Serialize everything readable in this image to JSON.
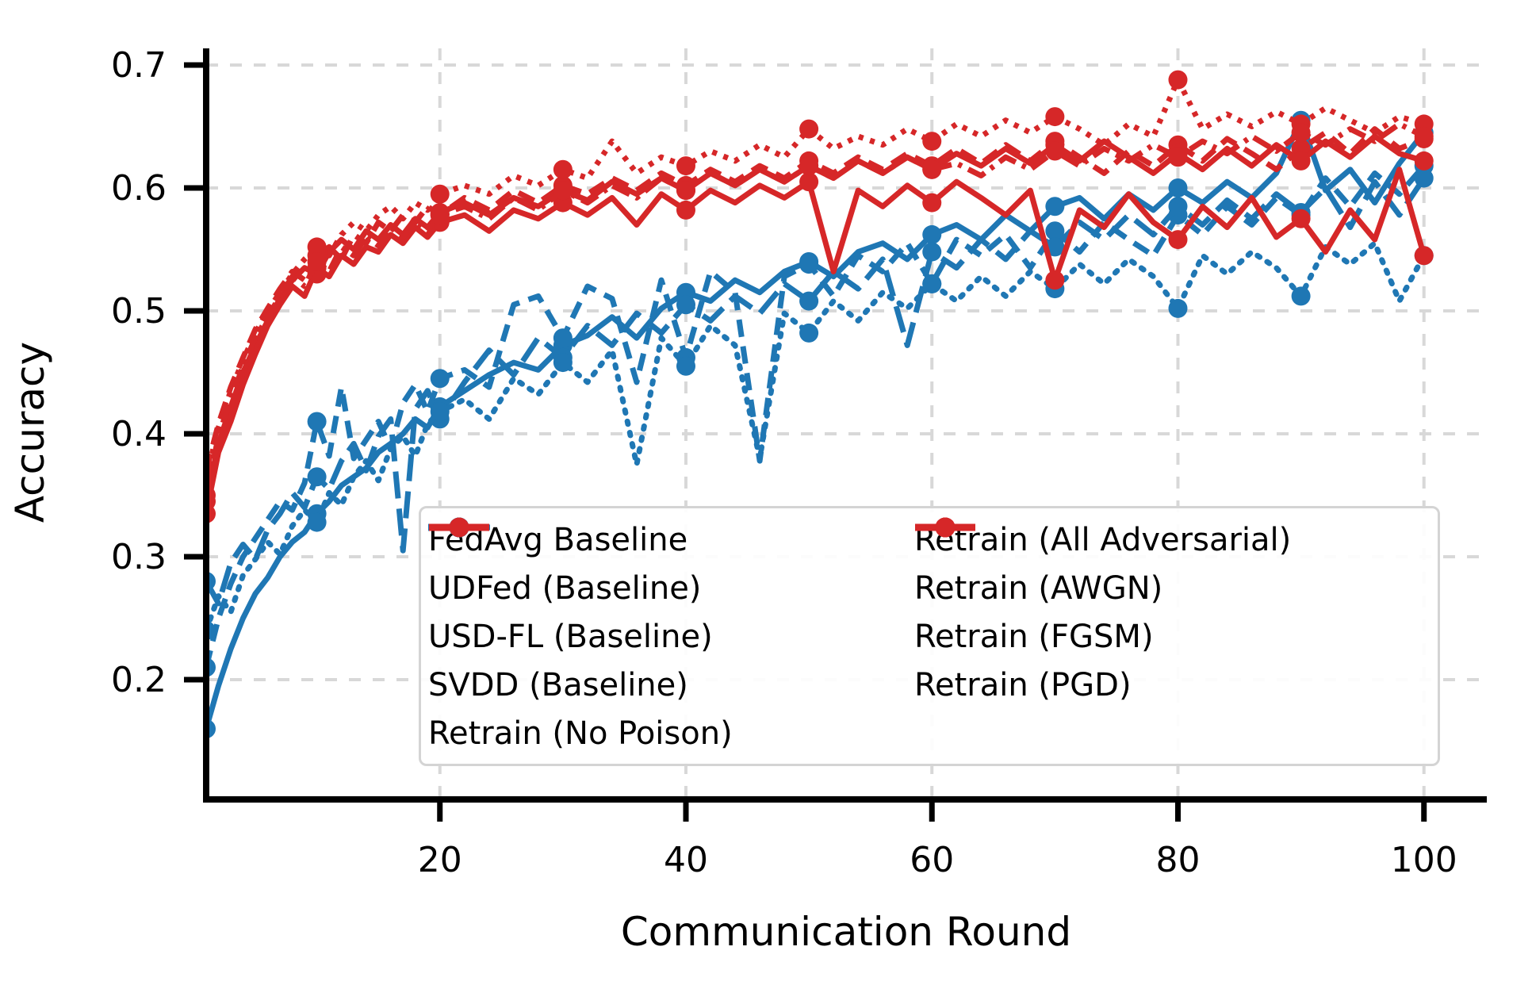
{
  "chart_data": {
    "type": "line",
    "title": "",
    "xlabel": "Communication Round",
    "ylabel": "Accuracy",
    "xlim": [
      1,
      105
    ],
    "ylim": [
      0.103,
      0.713
    ],
    "xticks": [
      20,
      40,
      60,
      80,
      100
    ],
    "yticks": [
      0.2,
      0.3,
      0.4,
      0.5,
      0.6,
      0.7
    ],
    "grid": true,
    "grid_style": "dashed",
    "legend_position": "lower center inside plot, 2 columns",
    "marker": "circle",
    "marker_every": 10,
    "x": [
      1,
      2,
      3,
      4,
      5,
      6,
      7,
      8,
      9,
      10,
      11,
      12,
      13,
      14,
      15,
      16,
      17,
      18,
      19,
      20,
      22,
      24,
      26,
      28,
      30,
      32,
      34,
      36,
      38,
      40,
      42,
      44,
      46,
      48,
      50,
      52,
      54,
      56,
      58,
      60,
      62,
      64,
      66,
      68,
      70,
      72,
      74,
      76,
      78,
      80,
      82,
      84,
      86,
      88,
      90,
      92,
      94,
      96,
      98,
      100
    ],
    "series": [
      {
        "name": "FedAvg Baseline",
        "color": "#1f77b4",
        "line_style": "solid",
        "values": [
          0.16,
          0.195,
          0.225,
          0.25,
          0.27,
          0.283,
          0.3,
          0.312,
          0.32,
          0.335,
          0.345,
          0.358,
          0.365,
          0.372,
          0.385,
          0.392,
          0.4,
          0.412,
          0.405,
          0.422,
          0.435,
          0.448,
          0.458,
          0.452,
          0.472,
          0.48,
          0.495,
          0.478,
          0.502,
          0.515,
          0.508,
          0.525,
          0.515,
          0.532,
          0.54,
          0.528,
          0.548,
          0.555,
          0.542,
          0.562,
          0.57,
          0.558,
          0.578,
          0.565,
          0.585,
          0.592,
          0.575,
          0.595,
          0.582,
          0.6,
          0.588,
          0.605,
          0.592,
          0.612,
          0.655,
          0.598,
          0.615,
          0.588,
          0.62,
          0.645
        ]
      },
      {
        "name": "UDFed (Baseline)",
        "color": "#1f77b4",
        "line_style": "dashed",
        "values": [
          0.21,
          0.25,
          0.278,
          0.3,
          0.315,
          0.33,
          0.345,
          0.338,
          0.36,
          0.41,
          0.382,
          0.438,
          0.38,
          0.395,
          0.41,
          0.388,
          0.425,
          0.44,
          0.418,
          0.445,
          0.452,
          0.438,
          0.505,
          0.512,
          0.478,
          0.52,
          0.51,
          0.442,
          0.525,
          0.462,
          0.532,
          0.515,
          0.378,
          0.528,
          0.538,
          0.512,
          0.545,
          0.532,
          0.555,
          0.522,
          0.558,
          0.545,
          0.562,
          0.535,
          0.565,
          0.548,
          0.572,
          0.558,
          0.545,
          0.578,
          0.562,
          0.585,
          0.57,
          0.592,
          0.578,
          0.608,
          0.585,
          0.612,
          0.595,
          0.618
        ]
      },
      {
        "name": "USD-FL (Baseline)",
        "color": "#1f77b4",
        "line_style": "long-dash",
        "values": [
          0.28,
          0.262,
          0.295,
          0.31,
          0.298,
          0.322,
          0.335,
          0.352,
          0.34,
          0.365,
          0.355,
          0.378,
          0.392,
          0.37,
          0.398,
          0.412,
          0.305,
          0.42,
          0.435,
          0.412,
          0.442,
          0.468,
          0.448,
          0.478,
          0.462,
          0.488,
          0.472,
          0.498,
          0.482,
          0.505,
          0.492,
          0.512,
          0.498,
          0.522,
          0.508,
          0.532,
          0.518,
          0.542,
          0.472,
          0.548,
          0.535,
          0.558,
          0.542,
          0.565,
          0.552,
          0.572,
          0.558,
          0.578,
          0.562,
          0.585,
          0.57,
          0.59,
          0.575,
          0.595,
          0.58,
          0.6,
          0.568,
          0.605,
          0.578,
          0.608
        ]
      },
      {
        "name": "SVDD (Baseline)",
        "color": "#1f77b4",
        "line_style": "dotted",
        "values": [
          0.24,
          0.268,
          0.255,
          0.285,
          0.298,
          0.312,
          0.302,
          0.325,
          0.338,
          0.328,
          0.352,
          0.342,
          0.365,
          0.378,
          0.362,
          0.388,
          0.398,
          0.382,
          0.408,
          0.418,
          0.428,
          0.412,
          0.445,
          0.432,
          0.458,
          0.442,
          0.468,
          0.375,
          0.478,
          0.455,
          0.488,
          0.472,
          0.38,
          0.498,
          0.482,
          0.508,
          0.492,
          0.515,
          0.502,
          0.522,
          0.508,
          0.528,
          0.512,
          0.532,
          0.518,
          0.538,
          0.522,
          0.542,
          0.528,
          0.502,
          0.545,
          0.53,
          0.548,
          0.535,
          0.512,
          0.552,
          0.538,
          0.555,
          0.508,
          0.545
        ]
      },
      {
        "name": "Retrain (No Poison)",
        "color": "#d62728",
        "line_style": "solid",
        "values": [
          0.335,
          0.385,
          0.41,
          0.44,
          0.465,
          0.488,
          0.505,
          0.52,
          0.512,
          0.535,
          0.528,
          0.545,
          0.538,
          0.552,
          0.548,
          0.562,
          0.555,
          0.568,
          0.56,
          0.572,
          0.578,
          0.565,
          0.582,
          0.575,
          0.588,
          0.578,
          0.592,
          0.57,
          0.595,
          0.582,
          0.598,
          0.588,
          0.602,
          0.592,
          0.605,
          0.532,
          0.598,
          0.585,
          0.602,
          0.588,
          0.605,
          0.592,
          0.578,
          0.598,
          0.525,
          0.582,
          0.568,
          0.595,
          0.572,
          0.558,
          0.585,
          0.568,
          0.592,
          0.56,
          0.575,
          0.548,
          0.582,
          0.558,
          0.615,
          0.545
        ]
      },
      {
        "name": "Retrain (All Adversarial)",
        "color": "#d62728",
        "line_style": "dashed",
        "values": [
          0.37,
          0.408,
          0.438,
          0.462,
          0.485,
          0.502,
          0.518,
          0.532,
          0.525,
          0.545,
          0.552,
          0.542,
          0.562,
          0.555,
          0.572,
          0.565,
          0.578,
          0.572,
          0.585,
          0.578,
          0.592,
          0.582,
          0.598,
          0.588,
          0.602,
          0.595,
          0.608,
          0.598,
          0.612,
          0.602,
          0.615,
          0.605,
          0.618,
          0.608,
          0.622,
          0.612,
          0.625,
          0.615,
          0.628,
          0.618,
          0.632,
          0.62,
          0.635,
          0.622,
          0.638,
          0.625,
          0.612,
          0.63,
          0.618,
          0.635,
          0.622,
          0.64,
          0.628,
          0.615,
          0.632,
          0.645,
          0.628,
          0.648,
          0.632,
          0.64
        ]
      },
      {
        "name": "Retrain (AWGN)",
        "color": "#d62728",
        "line_style": "solid",
        "values": [
          0.345,
          0.392,
          0.422,
          0.45,
          0.472,
          0.492,
          0.51,
          0.525,
          0.535,
          0.53,
          0.548,
          0.558,
          0.55,
          0.565,
          0.558,
          0.57,
          0.562,
          0.575,
          0.568,
          0.58,
          0.588,
          0.578,
          0.592,
          0.585,
          0.598,
          0.59,
          0.605,
          0.595,
          0.608,
          0.598,
          0.612,
          0.602,
          0.615,
          0.605,
          0.618,
          0.608,
          0.622,
          0.612,
          0.625,
          0.615,
          0.628,
          0.618,
          0.632,
          0.62,
          0.635,
          0.622,
          0.638,
          0.625,
          0.612,
          0.628,
          0.615,
          0.632,
          0.618,
          0.635,
          0.622,
          0.638,
          0.625,
          0.642,
          0.628,
          0.622
        ]
      },
      {
        "name": "Retrain (FGSM)",
        "color": "#d62728",
        "line_style": "square-dot",
        "values": [
          0.365,
          0.405,
          0.435,
          0.46,
          0.482,
          0.5,
          0.515,
          0.53,
          0.542,
          0.552,
          0.545,
          0.562,
          0.572,
          0.565,
          0.578,
          0.585,
          0.575,
          0.588,
          0.582,
          0.595,
          0.602,
          0.595,
          0.61,
          0.602,
          0.615,
          0.608,
          0.638,
          0.612,
          0.625,
          0.618,
          0.63,
          0.622,
          0.635,
          0.625,
          0.648,
          0.632,
          0.642,
          0.635,
          0.648,
          0.638,
          0.652,
          0.642,
          0.655,
          0.645,
          0.658,
          0.648,
          0.635,
          0.652,
          0.642,
          0.688,
          0.648,
          0.66,
          0.65,
          0.662,
          0.652,
          0.665,
          0.655,
          0.645,
          0.658,
          0.652
        ]
      },
      {
        "name": "Retrain (PGD)",
        "color": "#d62728",
        "line_style": "dash-dot",
        "values": [
          0.35,
          0.398,
          0.428,
          0.455,
          0.478,
          0.495,
          0.512,
          0.528,
          0.52,
          0.54,
          0.532,
          0.552,
          0.545,
          0.56,
          0.553,
          0.568,
          0.56,
          0.572,
          0.565,
          0.578,
          0.585,
          0.575,
          0.592,
          0.582,
          0.598,
          0.588,
          0.602,
          0.592,
          0.608,
          0.598,
          0.612,
          0.602,
          0.615,
          0.605,
          0.618,
          0.608,
          0.622,
          0.612,
          0.625,
          0.615,
          0.62,
          0.61,
          0.625,
          0.615,
          0.63,
          0.618,
          0.632,
          0.622,
          0.635,
          0.625,
          0.638,
          0.628,
          0.642,
          0.63,
          0.645,
          0.635,
          0.648,
          0.638,
          0.652,
          0.642
        ]
      }
    ]
  },
  "colors": {
    "baseline_blue": "#1f77b4",
    "retrain_red": "#d62728",
    "grid": "#d8d8d8",
    "axis": "#000000",
    "legend_border": "#d4d4d4",
    "background": "#ffffff"
  }
}
